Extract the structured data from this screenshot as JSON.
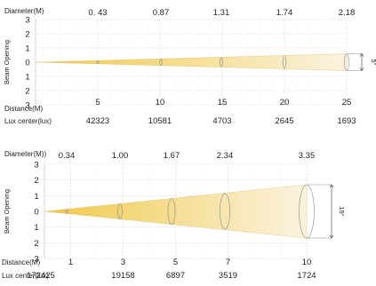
{
  "chart_data": [
    {
      "type": "line",
      "diameter_label": "Diameter(M)",
      "diameters": [
        "0. 43",
        "0.87",
        "1.31",
        "1.74",
        "2.18"
      ],
      "y_label": "Beam Opening",
      "y_ticks": [
        "3",
        "2",
        "1",
        "0",
        "1",
        "2",
        "3"
      ],
      "distance_label": "Distance(M)",
      "distances": [
        "5",
        "10",
        "15",
        "20",
        "25"
      ],
      "lux_label": "Lux center(lux)",
      "lux": [
        "42323",
        "10581",
        "4703",
        "2645",
        "1693"
      ],
      "beam_angle": "5°",
      "x": [
        5,
        10,
        15,
        20,
        25
      ],
      "diameter_m": [
        0.43,
        0.87,
        1.31,
        1.74,
        2.18
      ],
      "lux_values": [
        42323,
        10581,
        4703,
        2645,
        1693
      ],
      "xlim": [
        0,
        25
      ],
      "ylim": [
        -3,
        3
      ],
      "grid": true,
      "colors": {
        "beam_start": "#f0c94a",
        "beam_end": "#fbf3e0",
        "grid": "#cccccc"
      }
    },
    {
      "type": "line",
      "diameter_label": "Diameter(M))",
      "diameters": [
        "0.34",
        "1.00",
        "1.67",
        "2.34",
        "3.35"
      ],
      "y_label": "Beam Opening",
      "y_ticks": [
        "3",
        "2",
        "1",
        "0",
        "1",
        "2",
        "3"
      ],
      "distance_label": "Distance(M)",
      "distances": [
        "1",
        "3",
        "5",
        "7",
        "10"
      ],
      "lux_label": "Lux center(lux)",
      "lux": [
        "172425",
        "19158",
        "6897",
        "3519",
        "1724"
      ],
      "beam_angle": "19°",
      "x": [
        1,
        3,
        5,
        7,
        10
      ],
      "diameter_m": [
        0.34,
        1.0,
        1.67,
        2.34,
        3.35
      ],
      "lux_values": [
        172425,
        19158,
        6897,
        3519,
        1724
      ],
      "xlim": [
        0,
        10
      ],
      "ylim": [
        -3,
        3
      ],
      "grid": true,
      "colors": {
        "beam_start": "#f0c94a",
        "beam_end": "#fbf3e0",
        "grid": "#cccccc"
      }
    }
  ]
}
